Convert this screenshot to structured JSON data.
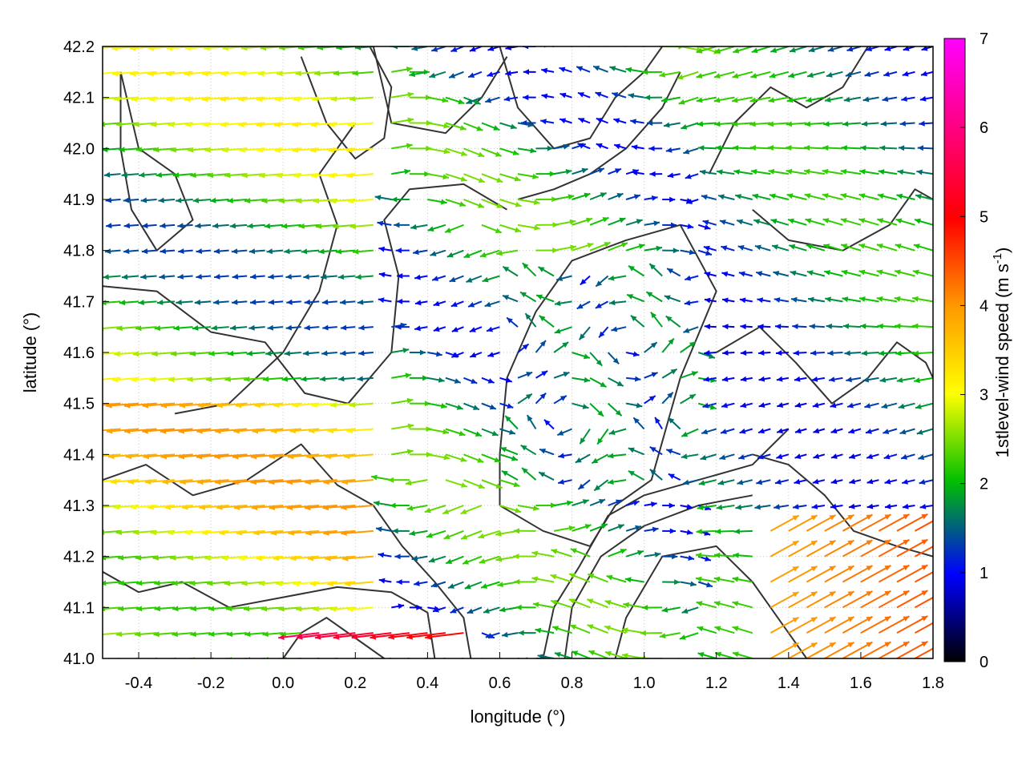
{
  "chart_data": {
    "type": "vector-field",
    "xlabel": "longitude (°)",
    "ylabel": "latitude (°)",
    "colorbar_label": "1stlevel-wind speed (m s",
    "colorbar_label_sup": "-1",
    "colorbar_label_close": ")",
    "xlim": [
      -0.5,
      1.8
    ],
    "ylim": [
      41.0,
      42.2
    ],
    "xticks": [
      "-0.4",
      "-0.2",
      "0.0",
      "0.2",
      "0.4",
      "0.6",
      "0.8",
      "1.0",
      "1.2",
      "1.4",
      "1.6",
      "1.8"
    ],
    "xtick_values": [
      -0.4,
      -0.2,
      0.0,
      0.2,
      0.4,
      0.6,
      0.8,
      1.0,
      1.2,
      1.4,
      1.6,
      1.8
    ],
    "yticks": [
      "41.0",
      "41.1",
      "41.2",
      "41.3",
      "41.4",
      "41.5",
      "41.6",
      "41.7",
      "41.8",
      "41.9",
      "42.0",
      "42.1",
      "42.2"
    ],
    "ytick_values": [
      41.0,
      41.1,
      41.2,
      41.3,
      41.4,
      41.5,
      41.6,
      41.7,
      41.8,
      41.9,
      42.0,
      42.1,
      42.2
    ],
    "colorbar_ticks": [
      "0",
      "1",
      "2",
      "3",
      "4",
      "5",
      "6",
      "7"
    ],
    "colorbar_range": [
      0,
      7
    ],
    "colormap": [
      "#000000",
      "#0000ff",
      "#00c000",
      "#ffff00",
      "#ff9900",
      "#ff0000",
      "#ff00ff"
    ],
    "grid": true,
    "grid_style": "dotted",
    "contour_color": "#333333",
    "contours": [
      [
        [
          -0.5,
          41.73
        ],
        [
          -0.35,
          41.72
        ],
        [
          -0.2,
          41.64
        ],
        [
          -0.05,
          41.62
        ],
        [
          0.06,
          41.52
        ],
        [
          0.18,
          41.5
        ],
        [
          0.3,
          41.6
        ],
        [
          0.32,
          41.75
        ],
        [
          0.28,
          41.86
        ],
        [
          0.35,
          41.92
        ],
        [
          0.5,
          41.93
        ],
        [
          0.62,
          41.88
        ]
      ],
      [
        [
          -0.5,
          41.35
        ],
        [
          -0.38,
          41.38
        ],
        [
          -0.25,
          41.32
        ],
        [
          -0.1,
          41.35
        ],
        [
          0.05,
          41.42
        ],
        [
          0.15,
          41.34
        ],
        [
          0.25,
          41.3
        ],
        [
          0.33,
          41.22
        ],
        [
          0.42,
          41.15
        ],
        [
          0.5,
          41.08
        ],
        [
          0.52,
          41.0
        ]
      ],
      [
        [
          -0.5,
          41.17
        ],
        [
          -0.4,
          41.13
        ],
        [
          -0.28,
          41.15
        ],
        [
          -0.15,
          41.1
        ],
        [
          0.0,
          41.12
        ],
        [
          0.15,
          41.14
        ],
        [
          0.3,
          41.13
        ],
        [
          0.4,
          41.09
        ],
        [
          0.42,
          41.0
        ]
      ],
      [
        [
          -0.45,
          42.15
        ],
        [
          -0.4,
          42.0
        ],
        [
          -0.3,
          41.95
        ],
        [
          -0.25,
          41.86
        ],
        [
          -0.35,
          41.8
        ],
        [
          -0.42,
          41.88
        ],
        [
          -0.45,
          42.0
        ],
        [
          -0.45,
          42.15
        ]
      ],
      [
        [
          0.05,
          42.18
        ],
        [
          0.12,
          42.05
        ],
        [
          0.2,
          41.98
        ],
        [
          0.28,
          42.02
        ],
        [
          0.3,
          42.12
        ],
        [
          0.24,
          42.2
        ]
      ],
      [
        [
          0.25,
          42.2
        ],
        [
          0.3,
          42.05
        ],
        [
          0.45,
          42.03
        ],
        [
          0.55,
          42.1
        ],
        [
          0.62,
          42.18
        ]
      ],
      [
        [
          0.6,
          41.3
        ],
        [
          0.72,
          41.25
        ],
        [
          0.85,
          41.22
        ],
        [
          0.92,
          41.3
        ],
        [
          1.02,
          41.35
        ],
        [
          1.1,
          41.55
        ],
        [
          1.2,
          41.72
        ],
        [
          1.1,
          41.85
        ],
        [
          0.95,
          41.82
        ],
        [
          0.8,
          41.78
        ],
        [
          0.7,
          41.68
        ],
        [
          0.62,
          41.55
        ],
        [
          0.6,
          41.4
        ],
        [
          0.6,
          41.3
        ]
      ],
      [
        [
          0.72,
          41.0
        ],
        [
          0.75,
          41.1
        ],
        [
          0.82,
          41.18
        ],
        [
          0.9,
          41.28
        ],
        [
          1.0,
          41.32
        ],
        [
          1.15,
          41.35
        ],
        [
          1.3,
          41.38
        ],
        [
          1.4,
          41.45
        ]
      ],
      [
        [
          0.78,
          41.0
        ],
        [
          0.8,
          41.1
        ],
        [
          0.88,
          41.2
        ],
        [
          1.0,
          41.26
        ],
        [
          1.15,
          41.3
        ],
        [
          1.3,
          41.32
        ]
      ],
      [
        [
          0.92,
          41.0
        ],
        [
          0.95,
          41.08
        ],
        [
          1.05,
          41.2
        ],
        [
          1.2,
          41.22
        ],
        [
          1.3,
          41.15
        ],
        [
          1.4,
          41.05
        ],
        [
          1.45,
          41.0
        ]
      ],
      [
        [
          1.3,
          41.4
        ],
        [
          1.4,
          41.38
        ],
        [
          1.5,
          41.32
        ],
        [
          1.58,
          41.25
        ],
        [
          1.7,
          41.22
        ],
        [
          1.8,
          41.2
        ]
      ],
      [
        [
          1.2,
          41.6
        ],
        [
          1.32,
          41.65
        ],
        [
          1.42,
          41.58
        ],
        [
          1.52,
          41.5
        ],
        [
          1.62,
          41.55
        ],
        [
          1.7,
          41.62
        ],
        [
          1.78,
          41.58
        ],
        [
          1.8,
          41.55
        ]
      ],
      [
        [
          1.18,
          41.95
        ],
        [
          1.25,
          42.05
        ],
        [
          1.35,
          42.12
        ],
        [
          1.45,
          42.08
        ],
        [
          1.55,
          42.12
        ],
        [
          1.62,
          42.2
        ]
      ],
      [
        [
          1.3,
          41.88
        ],
        [
          1.4,
          41.82
        ],
        [
          1.55,
          41.8
        ],
        [
          1.68,
          41.85
        ],
        [
          1.75,
          41.92
        ],
        [
          1.8,
          41.9
        ]
      ],
      [
        [
          0.6,
          42.2
        ],
        [
          0.65,
          42.08
        ],
        [
          0.75,
          42.0
        ],
        [
          0.85,
          42.02
        ],
        [
          0.92,
          42.1
        ],
        [
          1.0,
          42.15
        ],
        [
          1.05,
          42.2
        ]
      ],
      [
        [
          0.65,
          41.9
        ],
        [
          0.75,
          41.92
        ],
        [
          0.85,
          41.95
        ],
        [
          0.95,
          42.0
        ],
        [
          1.05,
          42.08
        ],
        [
          1.1,
          42.15
        ]
      ],
      [
        [
          0.0,
          41.0
        ],
        [
          0.05,
          41.05
        ],
        [
          0.12,
          41.08
        ],
        [
          0.2,
          41.04
        ],
        [
          0.28,
          41.0
        ]
      ],
      [
        [
          -0.3,
          41.48
        ],
        [
          -0.15,
          41.5
        ],
        [
          0.0,
          41.6
        ],
        [
          0.1,
          41.72
        ],
        [
          0.15,
          41.85
        ],
        [
          0.1,
          41.95
        ],
        [
          0.2,
          42.05
        ]
      ]
    ],
    "vectors_description": "wind vectors on a regular lon/lat grid colored by speed"
  }
}
